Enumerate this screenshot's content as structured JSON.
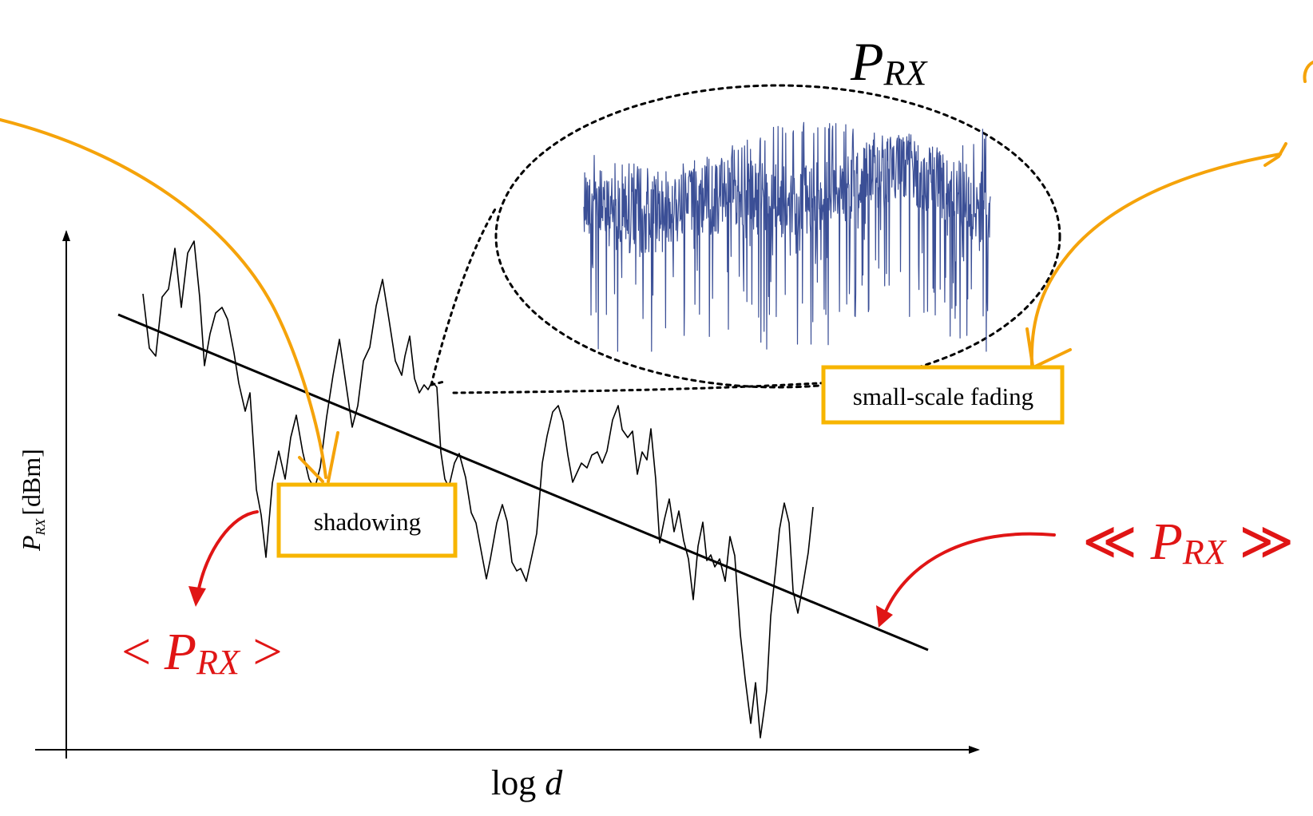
{
  "diagram": {
    "axes": {
      "y_label_main": "P",
      "y_label_sub": "RX",
      "y_label_unit": "[dBm]",
      "x_label_prefix": "log ",
      "x_label_var": "d"
    },
    "labels": {
      "shadowing": "shadowing",
      "small_scale_fading": "small-scale fading",
      "prx_top_main": "P",
      "prx_top_sub": "RX",
      "local_mean_open": "< ",
      "local_mean_main": "P",
      "local_mean_sub": "RX",
      "local_mean_close": " >",
      "area_mean_open": "≪ ",
      "area_mean_main": "P",
      "area_mean_sub": "RX",
      "area_mean_close": " ≫"
    },
    "colors": {
      "annotation_orange": "#F5A30A",
      "box_border": "#F7B500",
      "annotation_red": "#E01515",
      "fading_blue": "#3B4F96",
      "ink": "#000000"
    }
  }
}
